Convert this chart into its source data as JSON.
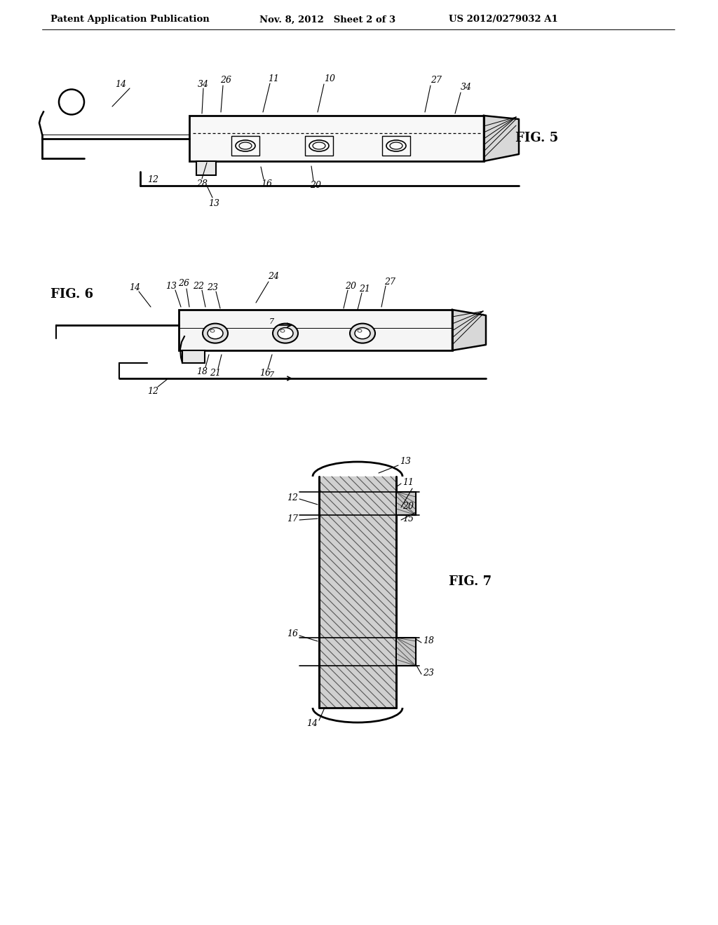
{
  "bg_color": "#ffffff",
  "header_text1": "Patent Application Publication",
  "header_text2": "Nov. 8, 2012   Sheet 2 of 3",
  "header_text3": "US 2012/0279032 A1",
  "fig5_label": "FIG. 5",
  "fig6_label": "FIG. 6",
  "fig7_label": "FIG. 7",
  "line_color": "#000000",
  "line_width": 1.5
}
